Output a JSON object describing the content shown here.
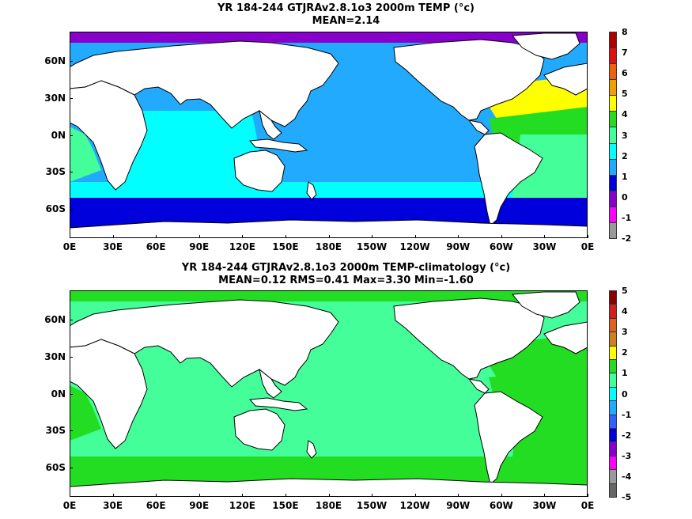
{
  "panels": [
    {
      "title": "YR 184-244 GTJRAv2.8.1o3 2000m TEMP (°c)",
      "stats": "MEAN=2.14",
      "colorbar": {
        "labels": [
          "8",
          "7",
          "6",
          "5",
          "4",
          "3",
          "2",
          "1",
          "0",
          "-1",
          "-2"
        ],
        "colors": [
          "#b00000",
          "#e01010",
          "#f06010",
          "#f0a000",
          "#ffff00",
          "#22dd22",
          "#44ff99",
          "#00ffff",
          "#22aaff",
          "#0000dd",
          "#8800cc",
          "#ff00ff",
          "#999999"
        ]
      },
      "map_colors": {
        "ocean_main": "#22aaff",
        "indian": "#00ffff",
        "atl_n": "#ffff00",
        "atl_mid": "#22dd22",
        "atl_s": "#44ff99",
        "southern_cold": "#0000dd",
        "arctic": "#8800cc"
      }
    },
    {
      "title": "YR 184-244 GTJRAv2.8.1o3 2000m TEMP-climatology (°c)",
      "stats": "MEAN=0.12   RMS=0.41   Max=3.30   Min=-1.60",
      "colorbar": {
        "labels": [
          "5",
          "4",
          "3",
          "2",
          "1",
          "0",
          "-1",
          "-2",
          "-3",
          "-4",
          "-5"
        ],
        "colors": [
          "#8b0000",
          "#d02020",
          "#e06020",
          "#d08020",
          "#ffff00",
          "#22dd22",
          "#44ff99",
          "#00ffff",
          "#22aaff",
          "#3060ff",
          "#0000dd",
          "#8800cc",
          "#ff00ff",
          "#999999",
          "#666666"
        ]
      },
      "map_colors": {
        "ocean_main": "#44ff99",
        "indian": "#44ff99",
        "atl_n": "#22dd22",
        "atl_mid": "#22dd22",
        "atl_s": "#22dd22",
        "southern_cold": "#22dd22",
        "arctic": "#22dd22"
      }
    }
  ],
  "axes": {
    "y_labels": [
      "60N",
      "30N",
      "0N",
      "30S",
      "60S"
    ],
    "x_labels": [
      "0E",
      "30E",
      "60E",
      "90E",
      "120E",
      "150E",
      "180E",
      "150W",
      "120W",
      "90W",
      "60W",
      "30W",
      "0E"
    ]
  }
}
